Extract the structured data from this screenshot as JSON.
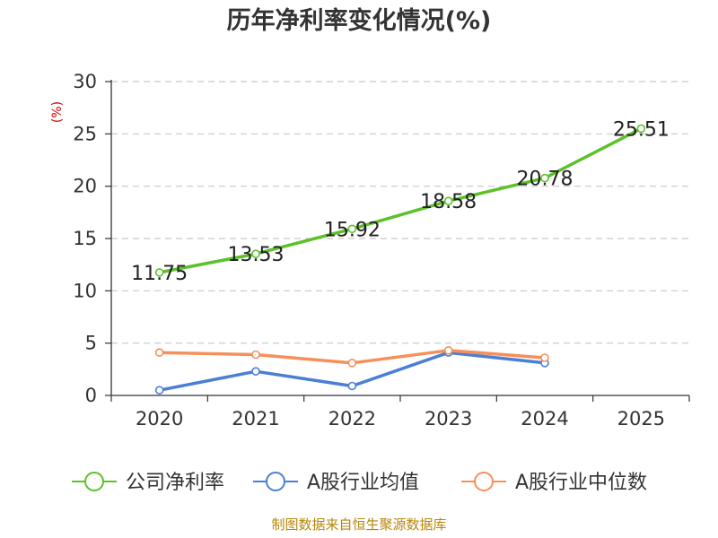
{
  "chart_data": {
    "type": "line",
    "title": "历年净利率变化情况(%)",
    "ylabel": "(%)",
    "xlabel": "",
    "ylim": [
      0,
      30
    ],
    "yticks": [
      0,
      5,
      10,
      15,
      20,
      25,
      30
    ],
    "categories": [
      "2020",
      "2021",
      "2022",
      "2023",
      "2024",
      "2025"
    ],
    "grid": true,
    "legend_position": "bottom",
    "series": [
      {
        "name": "公司净利率",
        "color": "#5dc12a",
        "values": [
          11.75,
          13.53,
          15.92,
          18.58,
          20.78,
          25.51
        ],
        "labels": [
          "11.75",
          "13.53",
          "15.92",
          "18.58",
          "20.78",
          "25.51"
        ]
      },
      {
        "name": "A股行业均值",
        "color": "#4a7fd6",
        "values": [
          0.5,
          2.3,
          0.9,
          4.1,
          3.1,
          null
        ]
      },
      {
        "name": "A股行业中位数",
        "color": "#f5905a",
        "values": [
          4.1,
          3.9,
          3.1,
          4.3,
          3.6,
          null
        ]
      }
    ],
    "source": "制图数据来自恒生聚源数据库"
  }
}
